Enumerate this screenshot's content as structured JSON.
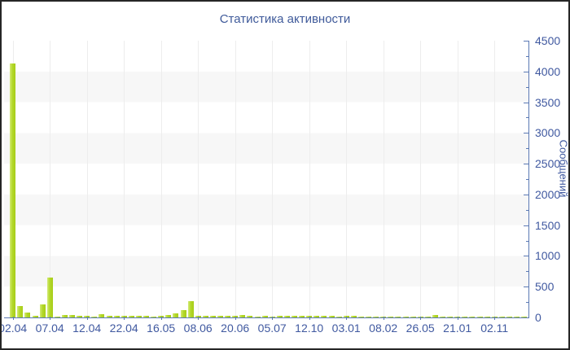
{
  "window": {
    "background": "#ffffff",
    "border_color": "#262626"
  },
  "chart_data": {
    "type": "bar",
    "title": "Статистика активности",
    "xlabel": "",
    "ylabel": "Сообщений",
    "ylim": [
      0,
      4500
    ],
    "y_major_step": 500,
    "y_minor_step": 250,
    "grid": "horizontal-alternating-bands",
    "legend": "none",
    "x_tick_labels": [
      "02.04",
      "07.04",
      "12.04",
      "22.04",
      "16.05",
      "08.06",
      "20.06",
      "05.07",
      "12.10",
      "03.01",
      "08.02",
      "26.05",
      "21.01",
      "02.11"
    ],
    "bars_per_labeled_tick": 5,
    "values": [
      4130,
      190,
      75,
      30,
      210,
      650,
      15,
      35,
      35,
      25,
      22,
      18,
      55,
      30,
      22,
      22,
      22,
      26,
      22,
      18,
      30,
      35,
      70,
      120,
      260,
      22,
      22,
      26,
      26,
      26,
      22,
      35,
      26,
      18,
      22,
      18,
      22,
      22,
      22,
      30,
      22,
      22,
      26,
      30,
      18,
      22,
      22,
      18,
      18,
      18,
      18,
      18,
      18,
      18,
      18,
      18,
      18,
      35,
      18,
      18,
      18,
      18,
      18,
      18,
      18,
      18,
      15,
      15,
      15,
      15
    ],
    "colors": {
      "title": "#3f5a9a",
      "tick_label": "#4059a0",
      "axis_line": "#5b79b4",
      "bar_main": "#b3d82b",
      "bar_highlight": "#d3ea76",
      "bar_shade": "#a7cd17",
      "band_gray": "#f7f7f7",
      "vertical_gridline": "#ededed"
    }
  }
}
